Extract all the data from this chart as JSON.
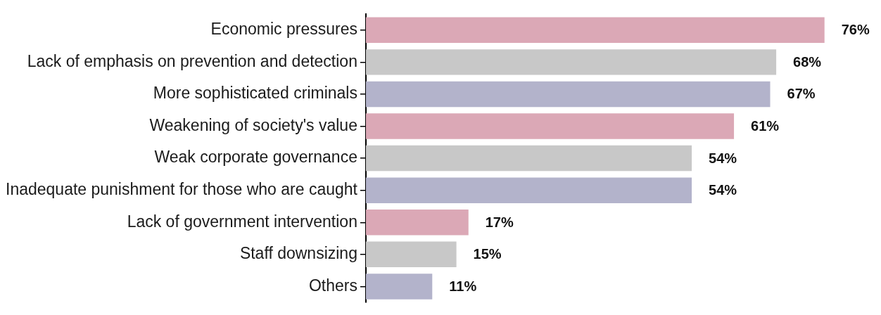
{
  "chart_data": {
    "type": "bar",
    "orientation": "horizontal",
    "tick_labels": "y",
    "categories": [
      "Economic pressures",
      "Lack of emphasis on prevention and detection",
      "More sophisticated criminals",
      "Weakening of society's value",
      "Weak corporate governance",
      "Inadequate punishment for those who are caught",
      "Lack of government intervention",
      "Staff downsizing",
      "Others"
    ],
    "values": [
      76,
      68,
      67,
      61,
      54,
      54,
      17,
      15,
      11
    ],
    "value_labels": [
      "76%",
      "68%",
      "67%",
      "61%",
      "54%",
      "54%",
      "17%",
      "15%",
      "11%"
    ],
    "colors": [
      "#dba8b6",
      "#c8c8c8",
      "#b3b3cb",
      "#dba8b6",
      "#c8c8c8",
      "#b3b3cb",
      "#dba8b6",
      "#c8c8c8",
      "#b3b3cb"
    ]
  }
}
